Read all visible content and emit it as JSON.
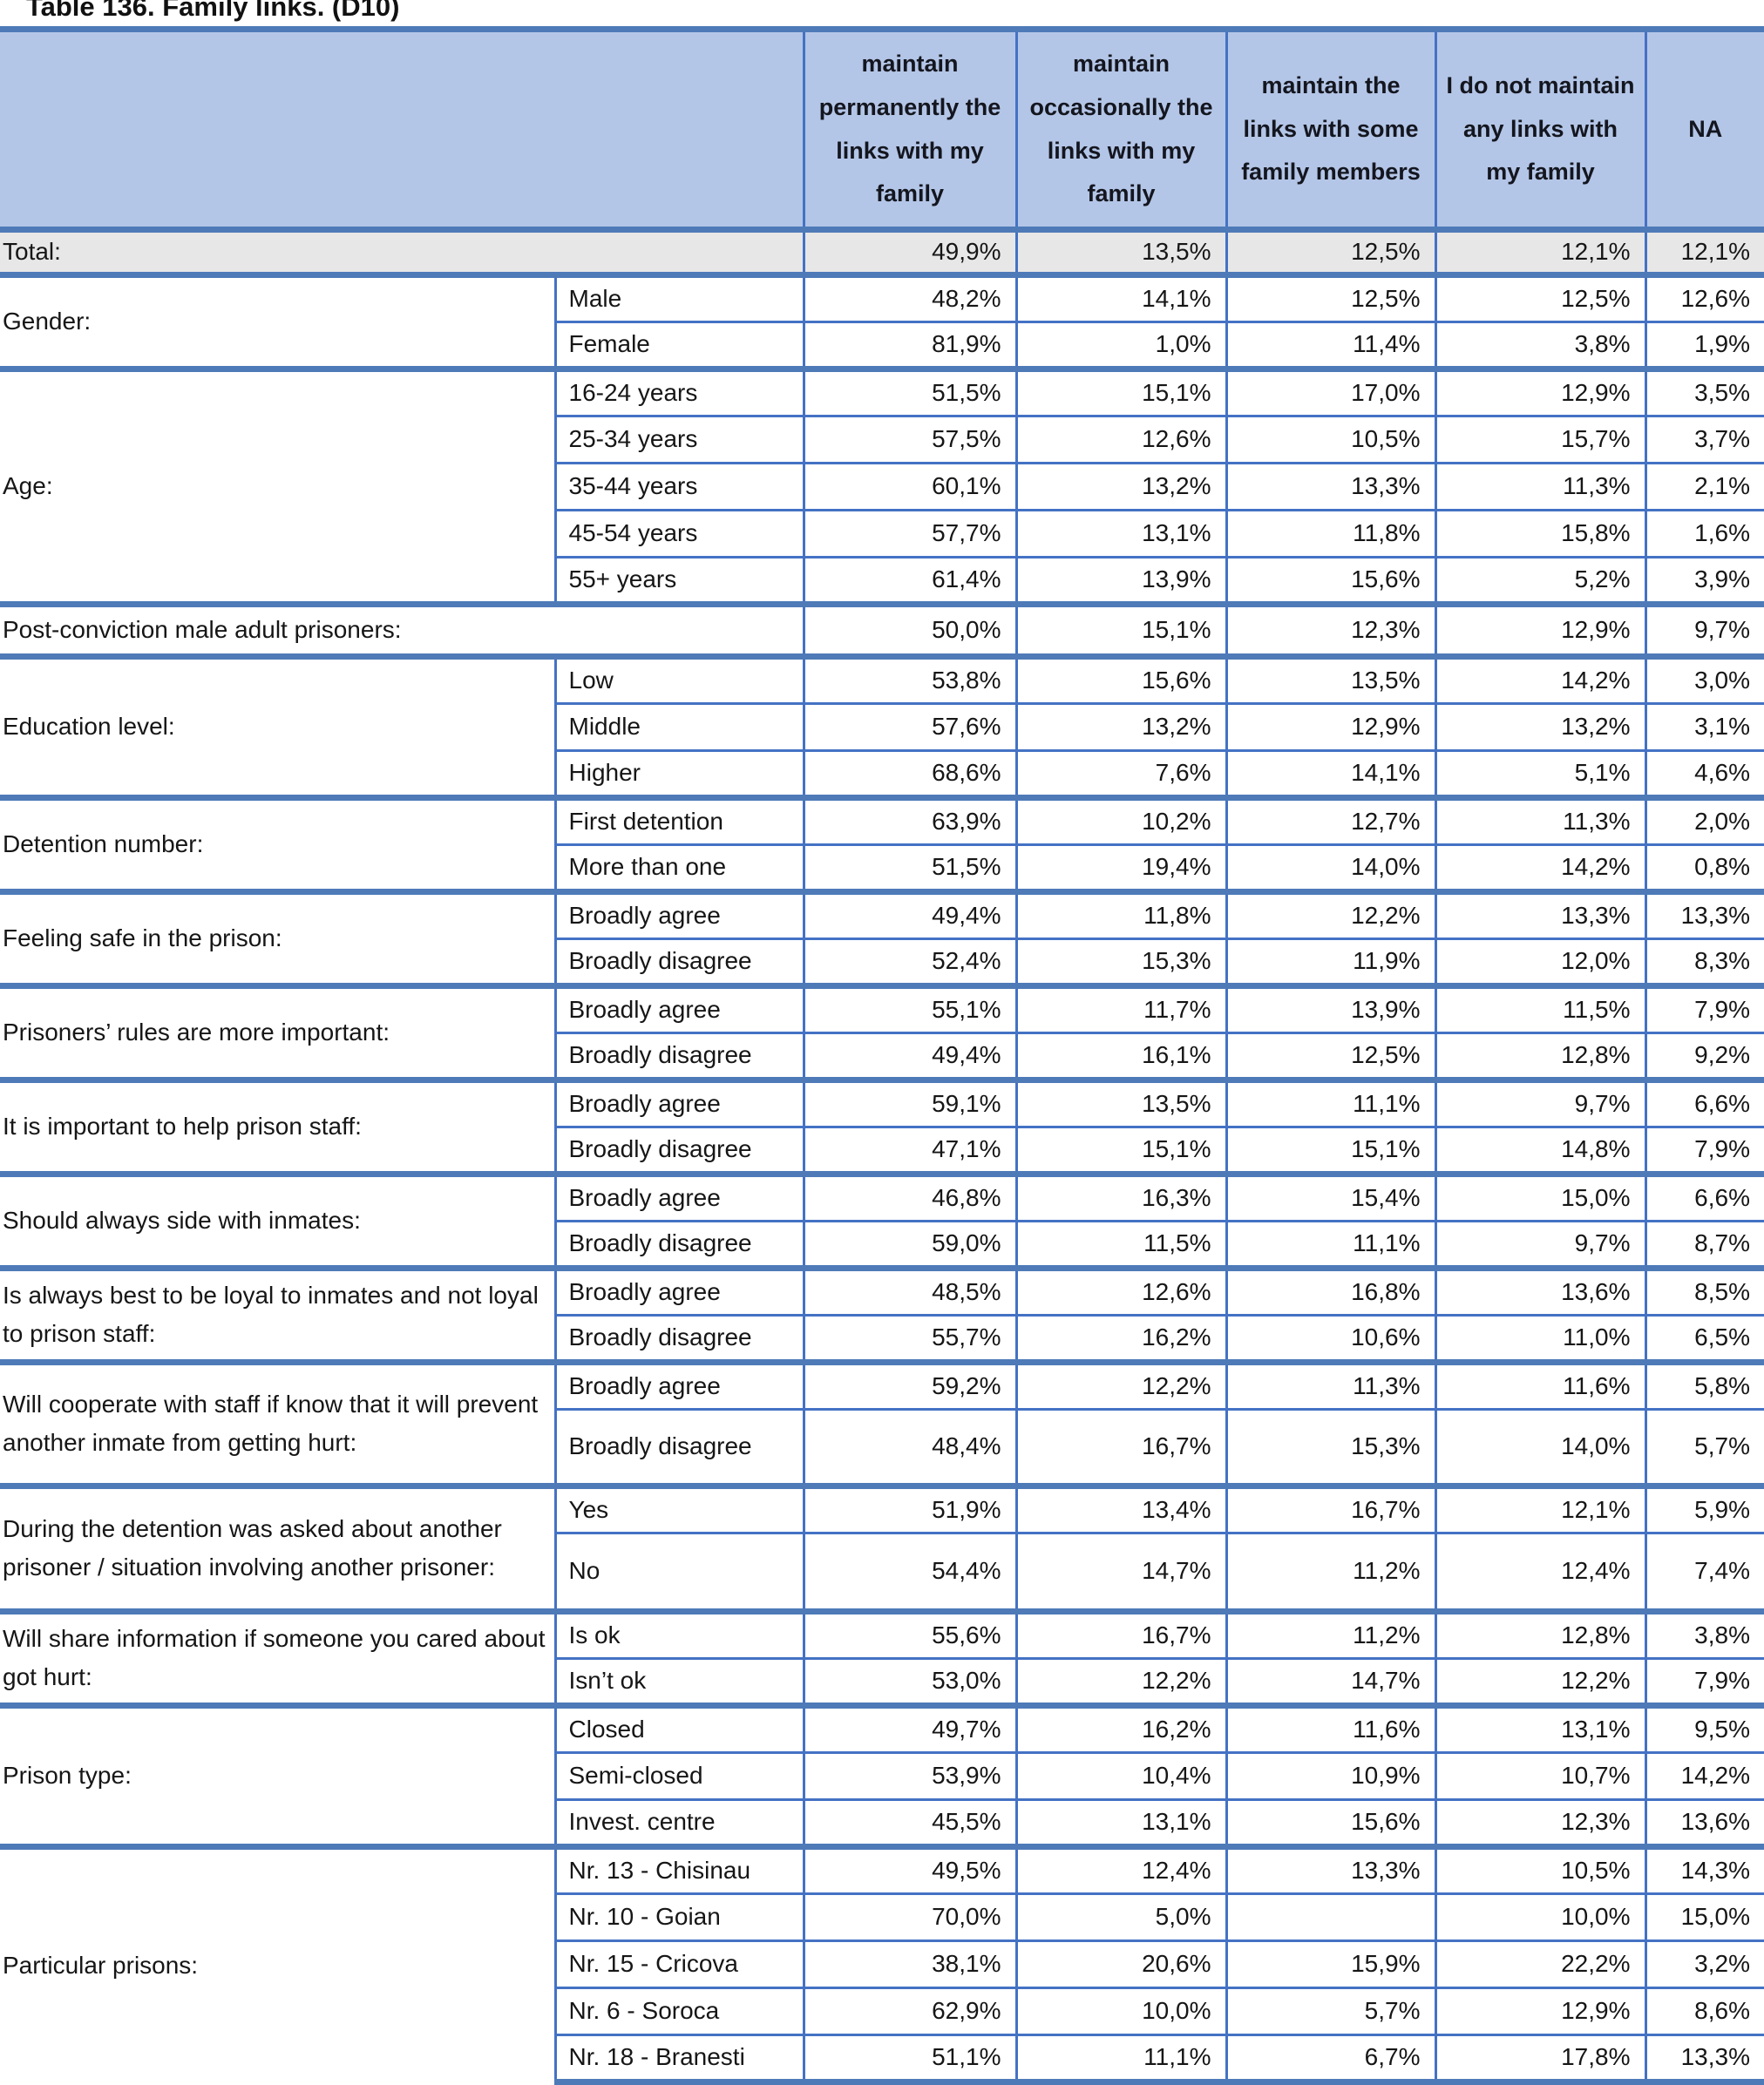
{
  "page_title": "Table 136. Family links. (D10)",
  "colors": {
    "header_bg": "#b4c6e7",
    "border_thin": "#4472c4",
    "border_thick": "#4e7ab8",
    "total_row_bg": "#e7e7e7",
    "text": "#161616"
  },
  "table": {
    "corner_blank": "",
    "column_headers": [
      "maintain permanently the links with my family",
      "maintain occasionally the links with my family",
      "maintain the links with some family members",
      "I do not maintain any links with my family",
      "NA"
    ],
    "groups": [
      {
        "label": "Total:",
        "merged": true,
        "total": true,
        "rows": [
          {
            "sub": "",
            "values": [
              "49,9%",
              "13,5%",
              "12,5%",
              "12,1%",
              "12,1%"
            ]
          }
        ]
      },
      {
        "label": "Gender:",
        "rows": [
          {
            "sub": "Male",
            "values": [
              "48,2%",
              "14,1%",
              "12,5%",
              "12,5%",
              "12,6%"
            ]
          },
          {
            "sub": "Female",
            "values": [
              "81,9%",
              "1,0%",
              "11,4%",
              "3,8%",
              "1,9%"
            ]
          }
        ]
      },
      {
        "label": "Age:",
        "rows": [
          {
            "sub": "16-24 years",
            "values": [
              "51,5%",
              "15,1%",
              "17,0%",
              "12,9%",
              "3,5%"
            ]
          },
          {
            "sub": "25-34 years",
            "values": [
              "57,5%",
              "12,6%",
              "10,5%",
              "15,7%",
              "3,7%"
            ]
          },
          {
            "sub": "35-44 years",
            "values": [
              "60,1%",
              "13,2%",
              "13,3%",
              "11,3%",
              "2,1%"
            ]
          },
          {
            "sub": "45-54 years",
            "values": [
              "57,7%",
              "13,1%",
              "11,8%",
              "15,8%",
              "1,6%"
            ]
          },
          {
            "sub": "55+ years",
            "values": [
              "61,4%",
              "13,9%",
              "15,6%",
              "5,2%",
              "3,9%"
            ]
          }
        ]
      },
      {
        "label": "Post-conviction male adult prisoners:",
        "merged": true,
        "rows": [
          {
            "sub": "",
            "values": [
              "50,0%",
              "15,1%",
              "12,3%",
              "12,9%",
              "9,7%"
            ]
          }
        ]
      },
      {
        "label": "Education level:",
        "rows": [
          {
            "sub": "Low",
            "values": [
              "53,8%",
              "15,6%",
              "13,5%",
              "14,2%",
              "3,0%"
            ]
          },
          {
            "sub": "Middle",
            "values": [
              "57,6%",
              "13,2%",
              "12,9%",
              "13,2%",
              "3,1%"
            ]
          },
          {
            "sub": "Higher",
            "values": [
              "68,6%",
              "7,6%",
              "14,1%",
              "5,1%",
              "4,6%"
            ]
          }
        ]
      },
      {
        "label": "Detention number:",
        "rows": [
          {
            "sub": "First detention",
            "values": [
              "63,9%",
              "10,2%",
              "12,7%",
              "11,3%",
              "2,0%"
            ]
          },
          {
            "sub": "More than one",
            "values": [
              "51,5%",
              "19,4%",
              "14,0%",
              "14,2%",
              "0,8%"
            ]
          }
        ]
      },
      {
        "label": "Feeling safe in the prison:",
        "rows": [
          {
            "sub": "Broadly agree",
            "values": [
              "49,4%",
              "11,8%",
              "12,2%",
              "13,3%",
              "13,3%"
            ]
          },
          {
            "sub": "Broadly disagree",
            "values": [
              "52,4%",
              "15,3%",
              "11,9%",
              "12,0%",
              "8,3%"
            ]
          }
        ]
      },
      {
        "label": "Prisoners’ rules are more important:",
        "rows": [
          {
            "sub": "Broadly agree",
            "values": [
              "55,1%",
              "11,7%",
              "13,9%",
              "11,5%",
              "7,9%"
            ]
          },
          {
            "sub": "Broadly disagree",
            "values": [
              "49,4%",
              "16,1%",
              "12,5%",
              "12,8%",
              "9,2%"
            ]
          }
        ]
      },
      {
        "label": "It is important to help prison staff:",
        "rows": [
          {
            "sub": "Broadly agree",
            "values": [
              "59,1%",
              "13,5%",
              "11,1%",
              "9,7%",
              "6,6%"
            ]
          },
          {
            "sub": "Broadly disagree",
            "values": [
              "47,1%",
              "15,1%",
              "15,1%",
              "14,8%",
              "7,9%"
            ]
          }
        ]
      },
      {
        "label": "Should always side with inmates:",
        "rows": [
          {
            "sub": "Broadly agree",
            "values": [
              "46,8%",
              "16,3%",
              "15,4%",
              "15,0%",
              "6,6%"
            ]
          },
          {
            "sub": "Broadly disagree",
            "values": [
              "59,0%",
              "11,5%",
              "11,1%",
              "9,7%",
              "8,7%"
            ]
          }
        ]
      },
      {
        "label": "Is always best to be loyal to inmates and not loyal to prison staff:",
        "rows": [
          {
            "sub": "Broadly agree",
            "values": [
              "48,5%",
              "12,6%",
              "16,8%",
              "13,6%",
              "8,5%"
            ]
          },
          {
            "sub": "Broadly disagree",
            "values": [
              "55,7%",
              "16,2%",
              "10,6%",
              "11,0%",
              "6,5%"
            ]
          }
        ]
      },
      {
        "label": "Will cooperate with staff if know that it will prevent another inmate from getting hurt:",
        "rows": [
          {
            "sub": "Broadly agree",
            "values": [
              "59,2%",
              "12,2%",
              "11,3%",
              "11,6%",
              "5,8%"
            ]
          },
          {
            "sub": "Broadly disagree",
            "values": [
              "48,4%",
              "16,7%",
              "15,3%",
              "14,0%",
              "5,7%"
            ]
          }
        ]
      },
      {
        "label": "During the detention was asked about another prisoner / situation involving another prisoner:",
        "rows": [
          {
            "sub": "Yes",
            "values": [
              "51,9%",
              "13,4%",
              "16,7%",
              "12,1%",
              "5,9%"
            ]
          },
          {
            "sub": "No",
            "values": [
              "54,4%",
              "14,7%",
              "11,2%",
              "12,4%",
              "7,4%"
            ]
          }
        ]
      },
      {
        "label": "Will share information if someone you cared about got hurt:",
        "rows": [
          {
            "sub": "Is ok",
            "values": [
              "55,6%",
              "16,7%",
              "11,2%",
              "12,8%",
              "3,8%"
            ]
          },
          {
            "sub": "Isn’t ok",
            "values": [
              "53,0%",
              "12,2%",
              "14,7%",
              "12,2%",
              "7,9%"
            ]
          }
        ]
      },
      {
        "label": "Prison type:",
        "rows": [
          {
            "sub": "Closed",
            "values": [
              "49,7%",
              "16,2%",
              "11,6%",
              "13,1%",
              "9,5%"
            ]
          },
          {
            "sub": "Semi-closed",
            "values": [
              "53,9%",
              "10,4%",
              "10,9%",
              "10,7%",
              "14,2%"
            ]
          },
          {
            "sub": "Invest. centre",
            "values": [
              "45,5%",
              "13,1%",
              "15,6%",
              "12,3%",
              "13,6%"
            ]
          }
        ]
      },
      {
        "label": "Particular prisons:",
        "rows": [
          {
            "sub": "Nr. 13 - Chisinau",
            "values": [
              "49,5%",
              "12,4%",
              "13,3%",
              "10,5%",
              "14,3%"
            ]
          },
          {
            "sub": "Nr. 10 - Goian",
            "values": [
              "70,0%",
              "5,0%",
              "",
              "10,0%",
              "15,0%"
            ]
          },
          {
            "sub": "Nr. 15 - Cricova",
            "values": [
              "38,1%",
              "20,6%",
              "15,9%",
              "22,2%",
              "3,2%"
            ]
          },
          {
            "sub": "Nr. 6 - Soroca",
            "values": [
              "62,9%",
              "10,0%",
              "5,7%",
              "12,9%",
              "8,6%"
            ]
          },
          {
            "sub": "Nr. 18 - Branesti",
            "values": [
              "51,1%",
              "11,1%",
              "6,7%",
              "17,8%",
              "13,3%"
            ]
          }
        ]
      }
    ]
  }
}
